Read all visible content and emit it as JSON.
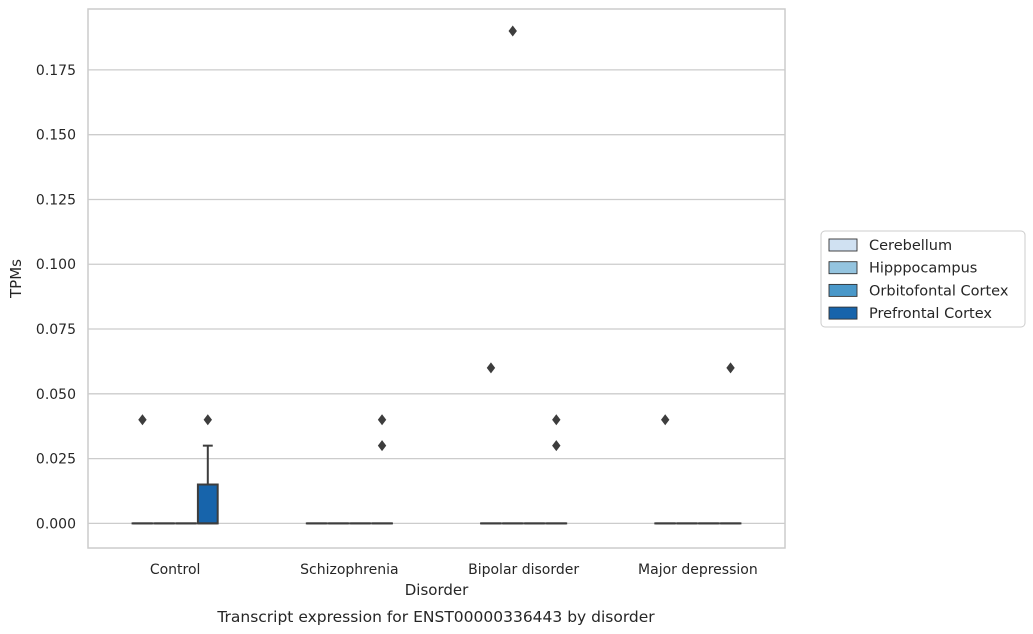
{
  "caption": "Transcript expression for ENST00000336443 by disorder",
  "chart_data": {
    "type": "box",
    "xlabel": "Disorder",
    "ylabel": "TPMs",
    "ylim": [
      -0.0095,
      0.1985
    ],
    "yticks": [
      "0.000",
      "0.025",
      "0.050",
      "0.075",
      "0.100",
      "0.125",
      "0.150",
      "0.175"
    ],
    "ytick_values": [
      0,
      0.025,
      0.05,
      0.075,
      0.1,
      0.125,
      0.15,
      0.175
    ],
    "grid": "horizontal",
    "legend_position": "right",
    "categories": [
      "Control",
      "Schizophrenia",
      "Bipolar disorder",
      "Major depression"
    ],
    "series": [
      {
        "name": "Cerebellum",
        "color": "#d0e1f2",
        "boxes": [
          {
            "q1": 0,
            "median": 0,
            "q3": 0,
            "whisker_low": 0,
            "whisker_high": 0,
            "outliers": [
              0.04
            ]
          },
          {
            "q1": 0,
            "median": 0,
            "q3": 0,
            "whisker_low": 0,
            "whisker_high": 0,
            "outliers": []
          },
          {
            "q1": 0,
            "median": 0,
            "q3": 0,
            "whisker_low": 0,
            "whisker_high": 0,
            "outliers": [
              0.06
            ]
          },
          {
            "q1": 0,
            "median": 0,
            "q3": 0,
            "whisker_low": 0,
            "whisker_high": 0,
            "outliers": [
              0.04
            ]
          }
        ]
      },
      {
        "name": "Hipppocampus",
        "color": "#94c4df",
        "boxes": [
          {
            "q1": 0,
            "median": 0,
            "q3": 0,
            "whisker_low": 0,
            "whisker_high": 0,
            "outliers": []
          },
          {
            "q1": 0,
            "median": 0,
            "q3": 0,
            "whisker_low": 0,
            "whisker_high": 0,
            "outliers": []
          },
          {
            "q1": 0,
            "median": 0,
            "q3": 0,
            "whisker_low": 0,
            "whisker_high": 0,
            "outliers": [
              0.19
            ]
          },
          {
            "q1": 0,
            "median": 0,
            "q3": 0,
            "whisker_low": 0,
            "whisker_high": 0,
            "outliers": []
          }
        ]
      },
      {
        "name": "Orbitofontal Cortex",
        "color": "#4a98c9",
        "boxes": [
          {
            "q1": 0,
            "median": 0,
            "q3": 0,
            "whisker_low": 0,
            "whisker_high": 0,
            "outliers": []
          },
          {
            "q1": 0,
            "median": 0,
            "q3": 0,
            "whisker_low": 0,
            "whisker_high": 0,
            "outliers": []
          },
          {
            "q1": 0,
            "median": 0,
            "q3": 0,
            "whisker_low": 0,
            "whisker_high": 0,
            "outliers": []
          },
          {
            "q1": 0,
            "median": 0,
            "q3": 0,
            "whisker_low": 0,
            "whisker_high": 0,
            "outliers": []
          }
        ]
      },
      {
        "name": "Prefrontal Cortex",
        "color": "#1764ab",
        "boxes": [
          {
            "q1": 0,
            "median": 0,
            "q3": 0.015,
            "whisker_low": 0,
            "whisker_high": 0.03,
            "outliers": [
              0.04
            ]
          },
          {
            "q1": 0,
            "median": 0,
            "q3": 0,
            "whisker_low": 0,
            "whisker_high": 0,
            "outliers": [
              0.03,
              0.04
            ]
          },
          {
            "q1": 0,
            "median": 0,
            "q3": 0,
            "whisker_low": 0,
            "whisker_high": 0,
            "outliers": [
              0.03,
              0.04
            ]
          },
          {
            "q1": 0,
            "median": 0,
            "q3": 0,
            "whisker_low": 0,
            "whisker_high": 0,
            "outliers": [
              0.06
            ]
          }
        ]
      }
    ]
  }
}
